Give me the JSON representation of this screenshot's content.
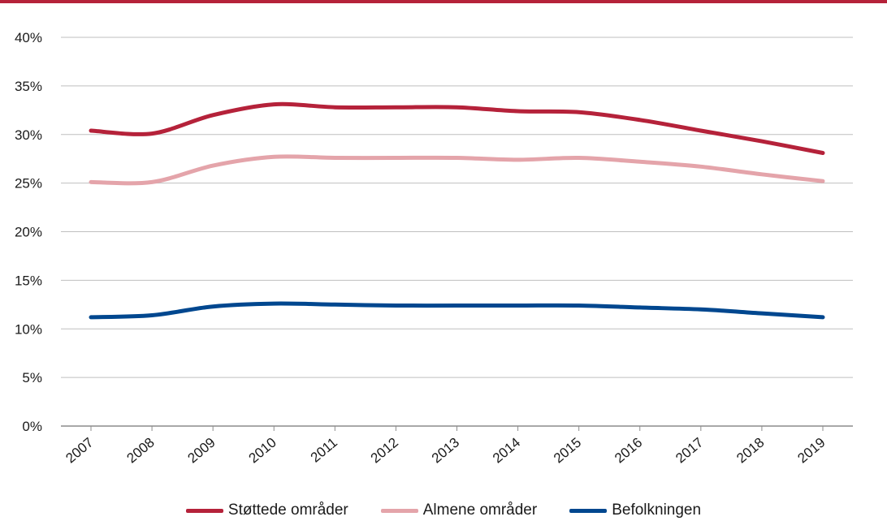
{
  "chart_data": {
    "type": "line",
    "categories": [
      "2007",
      "2008",
      "2009",
      "2010",
      "2011",
      "2012",
      "2013",
      "2014",
      "2015",
      "2016",
      "2017",
      "2018",
      "2019"
    ],
    "series": [
      {
        "name": "Støttede områder",
        "color": "#b5223a",
        "values": [
          30.4,
          30.1,
          32.0,
          33.1,
          32.8,
          32.8,
          32.8,
          32.4,
          32.3,
          31.5,
          30.4,
          29.3,
          28.1
        ]
      },
      {
        "name": "Almene områder",
        "color": "#e4a4aa",
        "values": [
          25.1,
          25.1,
          26.8,
          27.7,
          27.6,
          27.6,
          27.6,
          27.4,
          27.6,
          27.2,
          26.7,
          25.9,
          25.2
        ]
      },
      {
        "name": "Befolkningen",
        "color": "#00478f",
        "values": [
          11.2,
          11.4,
          12.3,
          12.6,
          12.5,
          12.4,
          12.4,
          12.4,
          12.4,
          12.2,
          12.0,
          11.6,
          11.2
        ]
      }
    ],
    "y_ticks": [
      "0%",
      "5%",
      "10%",
      "15%",
      "20%",
      "25%",
      "30%",
      "35%",
      "40%"
    ],
    "ylim": [
      0,
      40
    ],
    "grid": true,
    "legend_position": "bottom",
    "gridline_color": "#bfbfbf",
    "accent_color": "#b5223a"
  }
}
